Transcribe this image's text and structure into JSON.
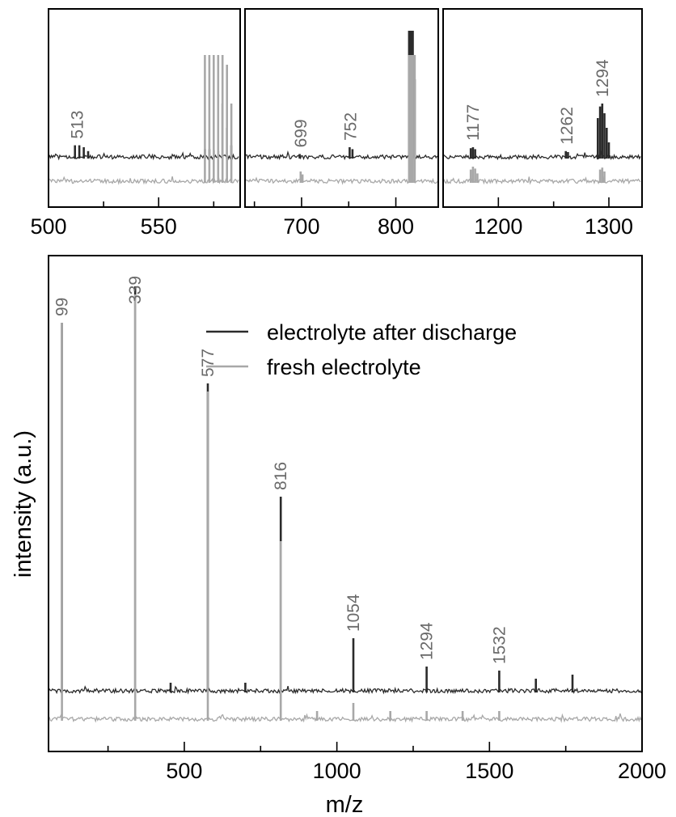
{
  "colors": {
    "after": "#2b2b2b",
    "fresh": "#a8a8a8",
    "label": "#6a6a6a"
  },
  "chart_data": [
    {
      "type": "line",
      "panel": "main",
      "xlabel": "m/z",
      "ylabel": "intensity (a.u.)",
      "xlim": [
        55,
        2000
      ],
      "xticks": [
        500,
        1000,
        1500,
        2000
      ],
      "xminor": [
        250,
        750,
        1250,
        1750
      ],
      "legend": {
        "position": "top-right",
        "entries": [
          "electrolyte after discharge",
          "fresh electrolyte"
        ]
      },
      "peak_labels": [
        {
          "x": 99,
          "text": "99"
        },
        {
          "x": 339,
          "text": "339"
        },
        {
          "x": 577,
          "text": "577"
        },
        {
          "x": 816,
          "text": "816"
        },
        {
          "x": 1054,
          "text": "1054"
        },
        {
          "x": 1294,
          "text": "1294"
        },
        {
          "x": 1532,
          "text": "1532"
        }
      ],
      "series": [
        {
          "name": "electrolyte after discharge",
          "baseline": 0.07,
          "peaks": [
            [
              99,
              0.91
            ],
            [
              339,
              1.0
            ],
            [
              577,
              0.76
            ],
            [
              816,
              0.48
            ],
            [
              1054,
              0.13
            ],
            [
              1294,
              0.06
            ],
            [
              1532,
              0.05
            ],
            [
              1652,
              0.03
            ],
            [
              1772,
              0.04
            ],
            [
              455,
              0.02
            ],
            [
              700,
              0.02
            ]
          ]
        },
        {
          "name": "fresh electrolyte",
          "baseline": 0.0,
          "peaks": [
            [
              99,
              0.98
            ],
            [
              339,
              1.05
            ],
            [
              577,
              0.81
            ],
            [
              816,
              0.44
            ],
            [
              1054,
              0.04
            ],
            [
              935,
              0.02
            ],
            [
              1175,
              0.02
            ],
            [
              1294,
              0.02
            ],
            [
              1412,
              0.02
            ],
            [
              1532,
              0.02
            ]
          ]
        }
      ]
    },
    {
      "type": "line",
      "panel": "inset-1",
      "xlim": [
        500,
        587
      ],
      "xticks": [
        500,
        550
      ],
      "xminor": [
        525,
        575
      ],
      "peak_labels": [
        {
          "x": 513,
          "text": "513"
        }
      ],
      "series": [
        {
          "name": "electrolyte after discharge",
          "baseline": 0.25,
          "peaks": [
            [
              512,
              0.12
            ],
            [
              514,
              0.12
            ],
            [
              516,
              0.1
            ],
            [
              518,
              0.06
            ],
            [
              571,
              0.08
            ],
            [
              573,
              0.08
            ],
            [
              575,
              0.07
            ],
            [
              577,
              0.06
            ],
            [
              579,
              0.55
            ],
            [
              581,
              0.3
            ],
            [
              583,
              0.12
            ]
          ]
        },
        {
          "name": "fresh electrolyte",
          "baseline": 0.0,
          "peaks": [
            [
              571,
              1.3
            ],
            [
              573,
              1.3
            ],
            [
              575,
              1.3
            ],
            [
              577,
              1.3
            ],
            [
              579,
              1.3
            ],
            [
              581,
              1.2
            ],
            [
              583,
              0.8
            ]
          ]
        }
      ]
    },
    {
      "type": "line",
      "panel": "inset-2",
      "xlim": [
        640,
        845
      ],
      "xticks": [
        700,
        800
      ],
      "xminor": [
        650,
        750
      ],
      "peak_labels": [
        {
          "x": 699,
          "text": "699"
        },
        {
          "x": 752,
          "text": "752"
        }
      ],
      "series": [
        {
          "name": "electrolyte after discharge",
          "baseline": 0.25,
          "peaks": [
            [
              698,
              0.03
            ],
            [
              751,
              0.1
            ],
            [
              754,
              0.08
            ],
            [
              814,
              1.3
            ],
            [
              816,
              1.3
            ],
            [
              818,
              1.3
            ],
            [
              820,
              0.8
            ]
          ]
        },
        {
          "name": "fresh electrolyte",
          "baseline": 0.0,
          "peaks": [
            [
              699,
              0.1
            ],
            [
              701,
              0.07
            ],
            [
              814,
              1.3
            ],
            [
              816,
              1.3
            ],
            [
              818,
              1.3
            ],
            [
              820,
              1.3
            ]
          ]
        }
      ]
    },
    {
      "type": "line",
      "panel": "inset-3",
      "xlim": [
        1150,
        1330
      ],
      "xticks": [
        1200,
        1300
      ],
      "xminor": [
        1250
      ],
      "peak_labels": [
        {
          "x": 1177,
          "text": "1177"
        },
        {
          "x": 1262,
          "text": "1262"
        },
        {
          "x": 1294,
          "text": "1294"
        }
      ],
      "series": [
        {
          "name": "electrolyte after discharge",
          "baseline": 0.25,
          "peaks": [
            [
              1175,
              0.09
            ],
            [
              1177,
              0.1
            ],
            [
              1179,
              0.08
            ],
            [
              1261,
              0.06
            ],
            [
              1263,
              0.05
            ],
            [
              1290,
              0.4
            ],
            [
              1292,
              0.52
            ],
            [
              1294,
              0.55
            ],
            [
              1296,
              0.45
            ],
            [
              1298,
              0.3
            ],
            [
              1300,
              0.15
            ]
          ]
        },
        {
          "name": "fresh electrolyte",
          "baseline": 0.0,
          "peaks": [
            [
              1175,
              0.12
            ],
            [
              1177,
              0.15
            ],
            [
              1179,
              0.13
            ],
            [
              1181,
              0.08
            ],
            [
              1292,
              0.12
            ],
            [
              1294,
              0.14
            ],
            [
              1296,
              0.1
            ]
          ]
        }
      ]
    }
  ]
}
